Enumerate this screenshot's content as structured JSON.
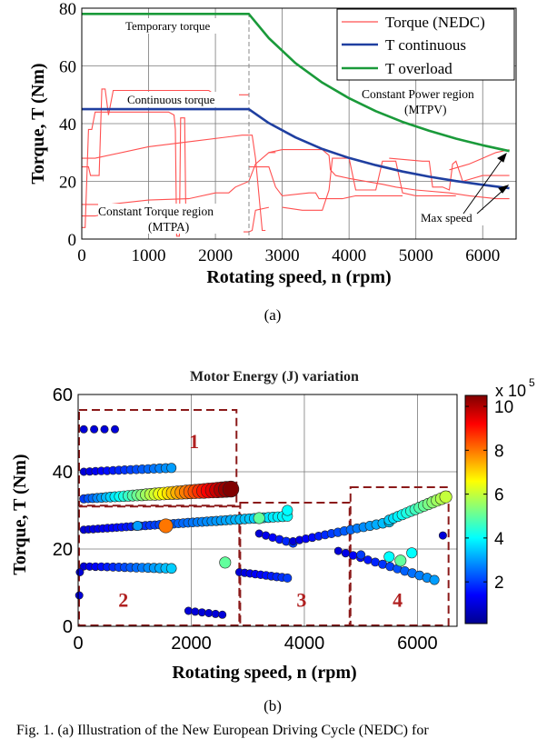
{
  "chart_data": [
    {
      "type": "line",
      "panel_label": "(a)",
      "xlabel": "Rotating speed, n (rpm)",
      "ylabel": "Torque, T (Nm)",
      "xlim": [
        0,
        6500
      ],
      "ylim": [
        0,
        80
      ],
      "xticks": [
        0,
        1000,
        2000,
        3000,
        4000,
        5000,
        6000
      ],
      "yticks": [
        0,
        20,
        40,
        60,
        80
      ],
      "grid": true,
      "legend_position": "top-right",
      "series": [
        {
          "name": "Torque (NEDC)",
          "color": "#ff5050",
          "segments": [
            [
              [
                0,
                4
              ],
              [
                50,
                4
              ],
              [
                100,
                38
              ],
              [
                150,
                38
              ],
              [
                200,
                44
              ],
              [
                1300,
                44
              ],
              [
                1380,
                43
              ],
              [
                1400,
                38
              ],
              [
                1420,
                1
              ],
              [
                1460,
                1
              ],
              [
                1480,
                42
              ],
              [
                1540,
                42
              ],
              [
                1560,
                4
              ],
              [
                1600,
                4
              ]
            ],
            [
              [
                0,
                25
              ],
              [
                100,
                25
              ],
              [
                130,
                22
              ],
              [
                260,
                22
              ],
              [
                300,
                52
              ],
              [
                350,
                52
              ],
              [
                400,
                43
              ],
              [
                470,
                51.5
              ],
              [
                1900,
                51.5
              ],
              [
                2000,
                50
              ],
              [
                2500,
                50
              ]
            ],
            [
              [
                0,
                28
              ],
              [
                200,
                28
              ],
              [
                1000,
                32
              ],
              [
                1700,
                34
              ],
              [
                2400,
                36
              ],
              [
                2550,
                36
              ],
              [
                2600,
                28
              ],
              [
                2700,
                3
              ],
              [
                2750,
                3
              ]
            ],
            [
              [
                0,
                8
              ],
              [
                200,
                8
              ],
              [
                400,
                9
              ],
              [
                1000,
                10
              ],
              [
                1700,
                10
              ],
              [
                1900,
                11
              ],
              [
                1950,
                3
              ],
              [
                2000,
                2.5
              ],
              [
                2500,
                2.5
              ],
              [
                2550,
                3
              ],
              [
                2600,
                10
              ],
              [
                2800,
                11
              ]
            ],
            [
              [
                0,
                12
              ],
              [
                400,
                12
              ],
              [
                800,
                13
              ],
              [
                1000,
                13.5
              ],
              [
                1600,
                14
              ],
              [
                2000,
                16
              ],
              [
                2200,
                16
              ],
              [
                2300,
                18
              ],
              [
                2500,
                20
              ],
              [
                2600,
                26
              ],
              [
                2800,
                30
              ],
              [
                2900,
                30
              ]
            ],
            [
              [
                2800,
                30
              ],
              [
                3000,
                31
              ],
              [
                3600,
                31
              ],
              [
                3700,
                29
              ],
              [
                3720,
                24
              ],
              [
                3800,
                22
              ],
              [
                4000,
                21
              ],
              [
                4500,
                19
              ],
              [
                4700,
                18
              ],
              [
                5000,
                17
              ],
              [
                5500,
                16
              ],
              [
                5800,
                15
              ],
              [
                6200,
                14
              ],
              [
                6400,
                14
              ]
            ],
            [
              [
                2500,
                25
              ],
              [
                2700,
                25
              ],
              [
                2800,
                25
              ],
              [
                2900,
                18
              ],
              [
                3000,
                15
              ],
              [
                3400,
                16
              ],
              [
                3500,
                16
              ],
              [
                3550,
                14
              ],
              [
                3900,
                14
              ],
              [
                4100,
                15
              ],
              [
                4800,
                15
              ]
            ],
            [
              [
                3000,
                11
              ],
              [
                3300,
                10
              ],
              [
                3600,
                10
              ],
              [
                3700,
                17
              ],
              [
                3750,
                28
              ],
              [
                4000,
                28
              ],
              [
                4100,
                17
              ],
              [
                4400,
                17
              ],
              [
                4500,
                27
              ],
              [
                4700,
                27
              ],
              [
                4800,
                16
              ],
              [
                5000,
                15
              ],
              [
                5600,
                15
              ]
            ],
            [
              [
                4600,
                28
              ],
              [
                5100,
                27
              ],
              [
                5200,
                27
              ],
              [
                5250,
                18
              ],
              [
                5400,
                18
              ],
              [
                5500,
                17
              ],
              [
                5550,
                26
              ],
              [
                5600,
                27
              ],
              [
                5700,
                20
              ],
              [
                6000,
                22
              ],
              [
                6400,
                22
              ]
            ],
            [
              [
                5500,
                24
              ],
              [
                5800,
                26
              ],
              [
                6000,
                28
              ],
              [
                6100,
                29
              ],
              [
                6200,
                30
              ],
              [
                6400,
                31
              ]
            ]
          ]
        },
        {
          "name": "T continuous",
          "color": "#1f3fa0",
          "points": [
            [
              0,
              45
            ],
            [
              2500,
              45
            ],
            [
              2800,
              40.2
            ],
            [
              3200,
              35.2
            ],
            [
              3600,
              31.2
            ],
            [
              4000,
              28.1
            ],
            [
              4400,
              25.6
            ],
            [
              4800,
              23.4
            ],
            [
              5200,
              21.6
            ],
            [
              5600,
              20.1
            ],
            [
              6000,
              18.8
            ],
            [
              6400,
              17.6
            ]
          ]
        },
        {
          "name": "T overload",
          "color": "#1a9a3a",
          "points": [
            [
              0,
              78
            ],
            [
              2500,
              78
            ],
            [
              2800,
              69.6
            ],
            [
              3200,
              60.9
            ],
            [
              3600,
              54.2
            ],
            [
              4000,
              48.8
            ],
            [
              4400,
              44.3
            ],
            [
              4800,
              40.6
            ],
            [
              5200,
              37.5
            ],
            [
              5600,
              34.8
            ],
            [
              6000,
              32.5
            ],
            [
              6400,
              30.5
            ]
          ]
        }
      ],
      "annotations": {
        "temporary": "Temporary torque",
        "continuous": "Continuous torque",
        "cp_line1": "Constant Power region",
        "cp_line2": "(MTPV)",
        "ct_line1": "Constant Torque region",
        "ct_line2": "(MTPA)",
        "max_speed": "Max speed"
      }
    },
    {
      "type": "scatter",
      "panel_label": "(b)",
      "title": "Motor Energy (J) variation",
      "xlabel": "Rotating speed, n (rpm)",
      "ylabel": "Torque, T (Nm)",
      "xlim": [
        0,
        6700
      ],
      "ylim": [
        0,
        60
      ],
      "xticks": [
        0,
        2000,
        4000,
        6000
      ],
      "yticks": [
        0,
        20,
        40,
        60
      ],
      "grid": true,
      "colorbar": {
        "label": "x 10",
        "exponent": "5",
        "range": [
          0.1,
          10.5
        ],
        "ticks": [
          2,
          4,
          6,
          8,
          10
        ]
      },
      "regions": [
        {
          "label": "1",
          "x": [
            0,
            2800
          ],
          "y": [
            31,
            56
          ]
        },
        {
          "label": "2",
          "x": [
            0,
            2850
          ],
          "y": [
            0,
            31
          ]
        },
        {
          "label": "3",
          "x": [
            2850,
            4800
          ],
          "y": [
            0,
            32
          ]
        },
        {
          "label": "4",
          "x": [
            4800,
            6550
          ],
          "y": [
            0,
            36
          ]
        }
      ],
      "clusters": [
        {
          "from": [
            100,
            51
          ],
          "to": [
            650,
            51
          ],
          "n": 4,
          "e": [
            1,
            1
          ]
        },
        {
          "from": [
            100,
            40
          ],
          "to": [
            1650,
            41
          ],
          "n": 16,
          "e": [
            1,
            3
          ]
        },
        {
          "from": [
            100,
            33
          ],
          "to": [
            2700,
            35.5
          ],
          "n": 34,
          "e": [
            2,
            10.5
          ]
        },
        {
          "from": [
            100,
            25
          ],
          "to": [
            3700,
            28.5
          ],
          "n": 44,
          "e": [
            1,
            4
          ]
        },
        {
          "from": [
            100,
            15.5
          ],
          "to": [
            1650,
            15
          ],
          "n": 16,
          "e": [
            1,
            3.5
          ]
        },
        {
          "from": [
            1950,
            4
          ],
          "to": [
            2550,
            3
          ],
          "n": 6,
          "e": [
            1,
            1
          ]
        },
        {
          "from": [
            2850,
            14
          ],
          "to": [
            3700,
            12.5
          ],
          "n": 10,
          "e": [
            1,
            2
          ]
        },
        {
          "from": [
            3200,
            24
          ],
          "to": [
            3800,
            21.5
          ],
          "n": 6,
          "e": [
            1,
            2
          ]
        },
        {
          "from": [
            3800,
            22
          ],
          "to": [
            5500,
            27
          ],
          "n": 16,
          "e": [
            1,
            3.5
          ]
        },
        {
          "from": [
            5500,
            27.5
          ],
          "to": [
            6500,
            33.5
          ],
          "n": 14,
          "e": [
            3.5,
            6
          ]
        },
        {
          "from": [
            4600,
            19.5
          ],
          "to": [
            6300,
            12
          ],
          "n": 14,
          "e": [
            1,
            3
          ]
        }
      ],
      "points": [
        {
          "x": 20,
          "y": 8,
          "e": 1
        },
        {
          "x": 30,
          "y": 14,
          "e": 1
        },
        {
          "x": 1050,
          "y": 26,
          "e": 3
        },
        {
          "x": 1550,
          "y": 26,
          "e": 8
        },
        {
          "x": 3200,
          "y": 28,
          "e": 5
        },
        {
          "x": 3700,
          "y": 30,
          "e": 4
        },
        {
          "x": 2600,
          "y": 16.5,
          "e": 5
        },
        {
          "x": 5500,
          "y": 18,
          "e": 4
        },
        {
          "x": 5700,
          "y": 17,
          "e": 5
        },
        {
          "x": 5900,
          "y": 19,
          "e": 4
        },
        {
          "x": 5000,
          "y": 18.5,
          "e": 2
        },
        {
          "x": 6450,
          "y": 23.5,
          "e": 1
        }
      ]
    }
  ],
  "caption": "Fig. 1.  (a) Illustration of the New European Driving Cycle (NEDC) for"
}
